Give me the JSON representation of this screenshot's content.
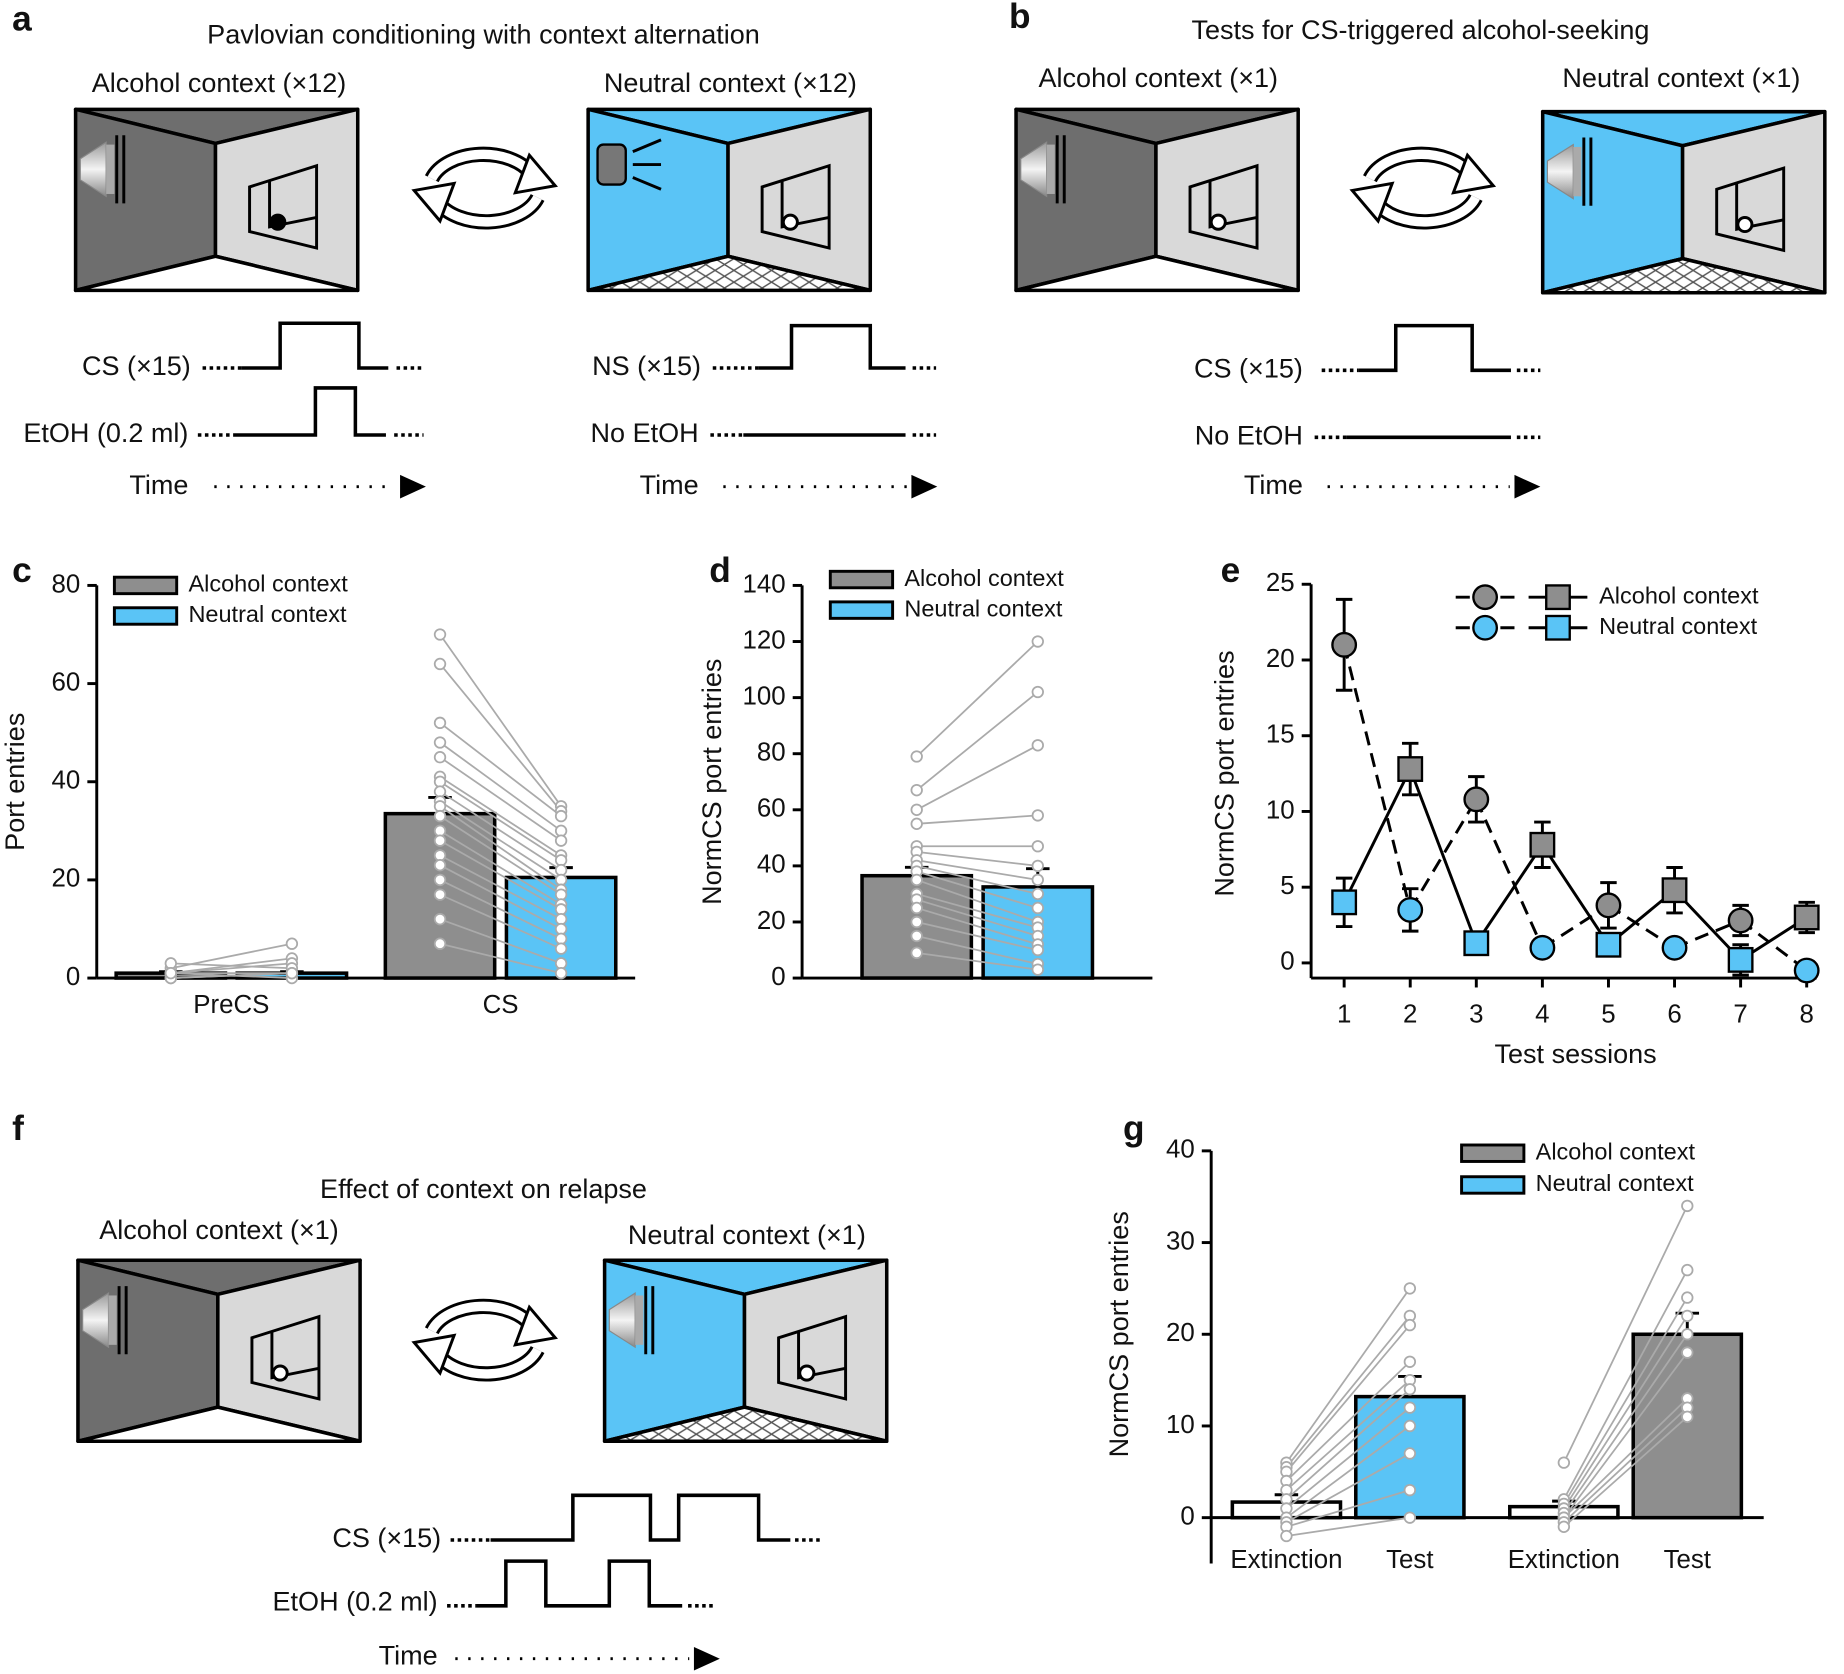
{
  "diagrams": [
    {
      "label": "a",
      "title": "Pavlovian conditioning with context alternation",
      "contexts": [
        "Alcohol context (×12)",
        "Neutral context (×12)"
      ],
      "timelines": [
        {
          "rows": [
            "CS (×15)",
            "EtOH  (0.2 ml)",
            "Time"
          ]
        },
        {
          "rows": [
            "NS (×15)",
            "No EtOH",
            "Time"
          ]
        }
      ]
    },
    {
      "label": "b",
      "title": "Tests for CS-triggered alcohol-seeking",
      "contexts": [
        "Alcohol context (×1)",
        "Neutral context (×1)"
      ],
      "timelines": [
        {
          "rows": [
            "CS (×15)",
            "No EtOH",
            "Time"
          ]
        }
      ]
    },
    {
      "label": "f",
      "title": "Effect of context on relapse",
      "contexts": [
        "Alcohol context (×1)",
        "Neutral context (×1)"
      ],
      "timelines": [
        {
          "rows": [
            "CS (×15)",
            "EtOH (0.2 ml)",
            "Time"
          ]
        }
      ]
    }
  ],
  "chart_data": [
    {
      "type": "bar",
      "label": "c",
      "ylabel": "Port entries",
      "categories": [
        "PreCS",
        "CS"
      ],
      "ylim": [
        0,
        80
      ],
      "yticks": [
        0,
        20,
        40,
        60,
        80
      ],
      "series": [
        {
          "name": "Alcohol context",
          "color": "#8e8e8e",
          "values": [
            1,
            33.5
          ],
          "errors": [
            0.3,
            3.3
          ],
          "points": [
            [
              2,
              1,
              1,
              0,
              3,
              1,
              0,
              1
            ],
            [
              70,
              64,
              52,
              48,
              45,
              41,
              40,
              38,
              36,
              35,
              33,
              30,
              28,
              25,
              23,
              20,
              17,
              12,
              7
            ]
          ]
        },
        {
          "name": "Neutral context",
          "color": "#5ac4f6",
          "values": [
            1,
            20.5
          ],
          "errors": [
            0.3,
            2
          ],
          "points": [
            [
              7,
              4,
              3,
              1,
              2,
              0,
              1,
              1
            ],
            [
              35,
              34,
              33,
              30,
              28,
              25,
              24,
              22,
              20,
              18,
              17,
              15,
              14,
              12,
              10,
              8,
              6,
              3,
              1
            ]
          ]
        }
      ]
    },
    {
      "type": "bar",
      "label": "d",
      "ylabel": "NormCS port entries",
      "categories": [
        null
      ],
      "ylim": [
        0,
        140
      ],
      "yticks": [
        0,
        20,
        40,
        60,
        80,
        100,
        120,
        140
      ],
      "series": [
        {
          "name": "Alcohol context",
          "color": "#8e8e8e",
          "values": [
            36.5
          ],
          "errors": [
            3
          ],
          "points": [
            [
              79,
              67,
              60,
              55,
              47,
              45,
              42,
              40,
              38,
              35,
              30,
              28,
              25,
              20,
              15,
              9
            ]
          ]
        },
        {
          "name": "Neutral context",
          "color": "#5ac4f6",
          "values": [
            32.5
          ],
          "errors": [
            6.5
          ],
          "points": [
            [
              120,
              102,
              83,
              58,
              47,
              40,
              35,
              30,
              25,
              20,
              18,
              15,
              12,
              10,
              5,
              3
            ]
          ]
        }
      ]
    },
    {
      "type": "line",
      "label": "e",
      "ylabel": "NormCS port entries",
      "xlabel": "Test sessions",
      "x": [
        1,
        2,
        3,
        4,
        5,
        6,
        7,
        8
      ],
      "xlim": [
        0.5,
        8.15
      ],
      "xticks": [
        1,
        2,
        3,
        4,
        5,
        6,
        7,
        8
      ],
      "ylim": [
        -1,
        25
      ],
      "yticks": [
        0,
        5,
        10,
        15,
        20,
        25
      ],
      "line_styles": {
        "circle": "dashed",
        "square": "solid"
      },
      "series": [
        {
          "name": "Alcohol context",
          "color": "#8e8e8e",
          "values": [
            21,
            12.8,
            10.8,
            7.8,
            3.8,
            4.8,
            2.8,
            3.0
          ],
          "errors": [
            3,
            1.7,
            1.5,
            1.5,
            1.5,
            1.5,
            1.0,
            1.0
          ],
          "markers": [
            "circle",
            "square",
            "circle",
            "square",
            "circle",
            "square",
            "circle",
            "square"
          ]
        },
        {
          "name": "Neutral context",
          "color": "#5ac4f6",
          "values": [
            4,
            3.5,
            1.3,
            1.0,
            1.2,
            1.0,
            0.2,
            -0.5
          ],
          "errors": [
            1.6,
            1.4,
            0.4,
            0.3,
            0.3,
            0.3,
            1.0,
            0.3
          ],
          "markers": [
            "square",
            "circle",
            "square",
            "circle",
            "square",
            "circle",
            "square",
            "circle"
          ]
        }
      ]
    },
    {
      "type": "bar",
      "label": "g",
      "ylabel": "NormCS port entries",
      "categories": [
        "Extinction",
        "Test",
        "Extinction",
        "Test"
      ],
      "ylim": [
        -5,
        40
      ],
      "yticks": [
        0,
        10,
        20,
        30,
        40
      ],
      "values": [
        1.7,
        13.2,
        1.2,
        20
      ],
      "errors": [
        0.8,
        2.2,
        0.6,
        2.3
      ],
      "colors": [
        "#ffffff",
        "#5ac4f6",
        "#ffffff",
        "#8e8e8e"
      ],
      "points": [
        [
          6,
          5.5,
          5,
          4,
          3,
          2,
          1,
          0,
          -0.5,
          -1,
          -2
        ],
        [
          25,
          22,
          21,
          17,
          15,
          14,
          12,
          10,
          7,
          3,
          0
        ],
        [
          6,
          2,
          1.5,
          1,
          0.5,
          0,
          0,
          -0.5,
          -1
        ],
        [
          34,
          27,
          24,
          22,
          20,
          18,
          13,
          12,
          11
        ]
      ],
      "legend": [
        {
          "name": "Alcohol context",
          "color": "#8e8e8e"
        },
        {
          "name": "Neutral context",
          "color": "#5ac4f6"
        }
      ]
    }
  ]
}
